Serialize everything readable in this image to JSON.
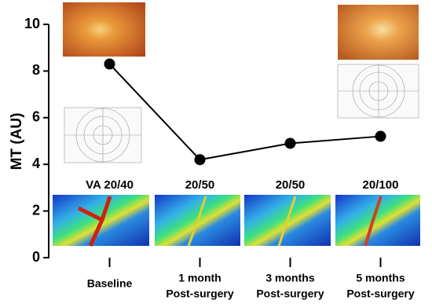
{
  "chart_data": {
    "type": "line",
    "y_label": "MT (AU)",
    "categories": [
      [
        "Baseline"
      ],
      [
        "1 month",
        "Post-surgery"
      ],
      [
        "3 months",
        "Post-surgery"
      ],
      [
        "5 months",
        "Post-surgery"
      ]
    ],
    "values": [
      8.3,
      4.2,
      4.9,
      5.2
    ],
    "annotations": [
      "VA 20/40",
      "20/50",
      "20/50",
      "20/100"
    ],
    "color": "#000000",
    "ylim": [
      0,
      10
    ],
    "yticks": [
      0,
      2,
      4,
      6,
      8,
      10
    ]
  }
}
